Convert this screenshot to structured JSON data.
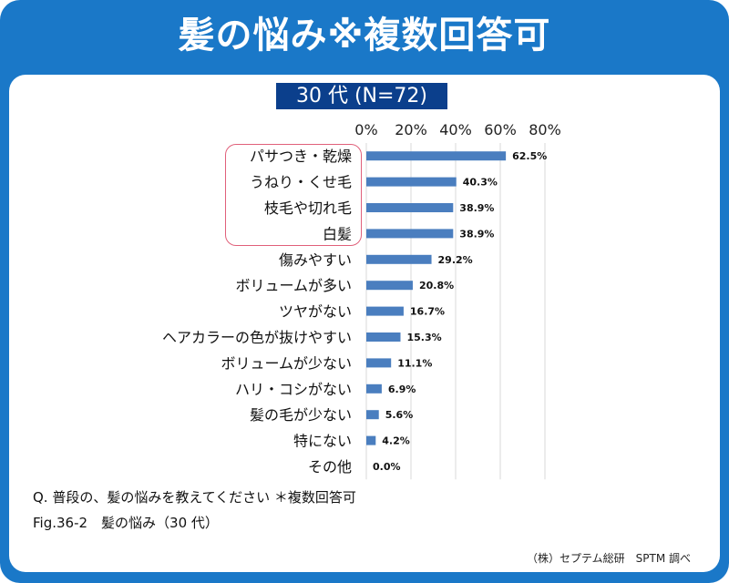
{
  "title": "髪の悩み※複数回答可",
  "subtitle": "30 代 (N=72)",
  "colors": {
    "frame": "#1a78c8",
    "subtitle_bg": "#0b3f8c",
    "bar": "#4a7ebf",
    "highlight": "#e0607a"
  },
  "chart_data": {
    "type": "bar",
    "orientation": "horizontal",
    "categories": [
      "パサつき・乾燥",
      "うねり・くせ毛",
      "枝毛や切れ毛",
      "白髪",
      "傷みやすい",
      "ボリュームが多い",
      "ツヤがない",
      "ヘアカラーの色が抜けやすい",
      "ボリュームが少ない",
      "ハリ・コシがない",
      "髪の毛が少ない",
      "特にない",
      "その他"
    ],
    "values": [
      62.5,
      40.3,
      38.9,
      38.9,
      29.2,
      20.8,
      16.7,
      15.3,
      11.1,
      6.9,
      5.6,
      4.2,
      0.0
    ],
    "value_labels": [
      "62.5%",
      "40.3%",
      "38.9%",
      "38.9%",
      "29.2%",
      "20.8%",
      "16.7%",
      "15.3%",
      "11.1%",
      "6.9%",
      "5.6%",
      "4.2%",
      "0.0%"
    ],
    "x_ticks": [
      "0%",
      "20%",
      "40%",
      "60%",
      "80%"
    ],
    "xlim": [
      0,
      80
    ],
    "grid": true,
    "highlighted_categories": [
      "パサつき・乾燥",
      "うねり・くせ毛",
      "枝毛や切れ毛",
      "白髪"
    ]
  },
  "notes": {
    "question": "Q. 普段の、髪の悩みを教えてください ＊複数回答可",
    "figure": "Fig.36-2　髪の悩み（30 代）",
    "credit": "（株）セプテム総研　SPTM 調べ"
  }
}
